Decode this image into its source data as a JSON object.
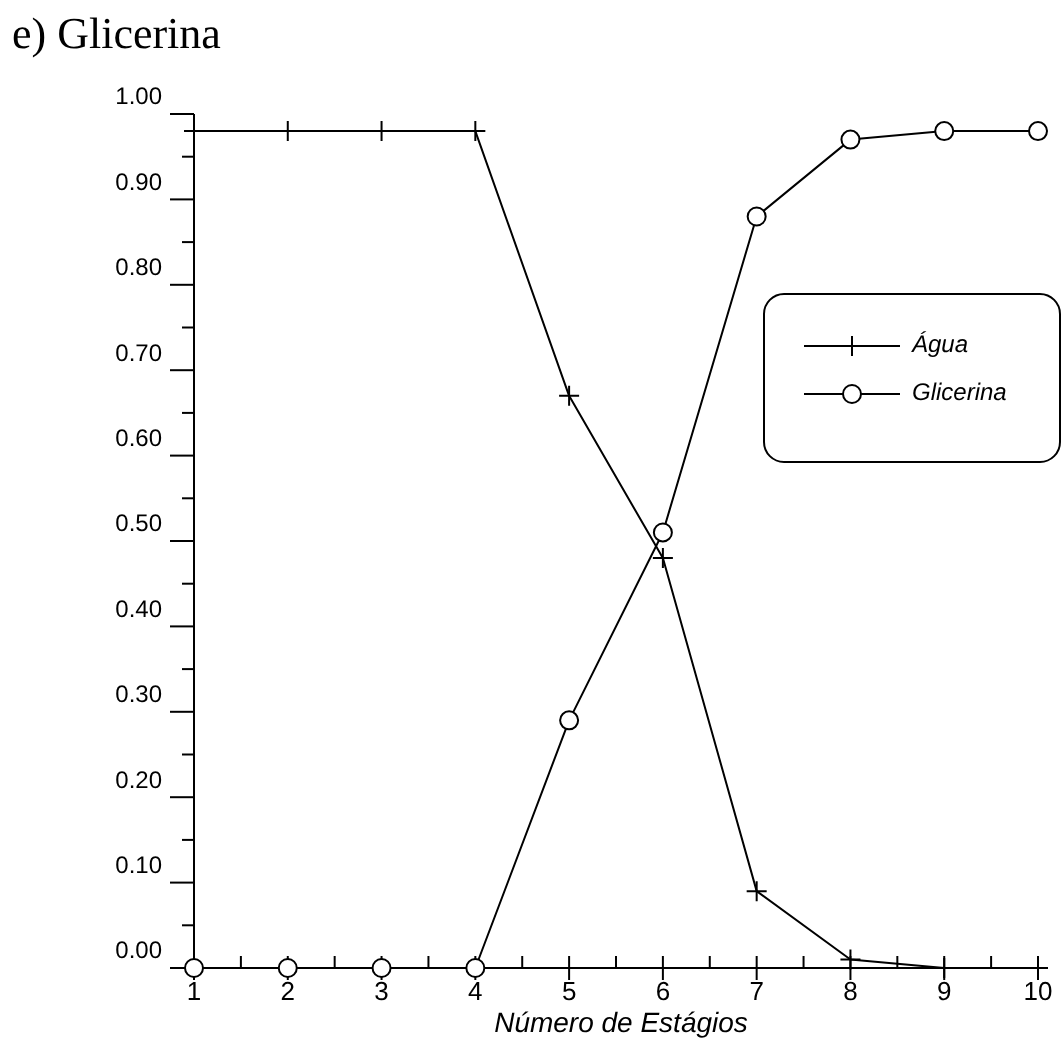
{
  "chart_data": {
    "type": "line",
    "title": "e) Glicerina",
    "xlabel": "Número de Estágios",
    "x": [
      1,
      2,
      3,
      4,
      5,
      6,
      7,
      8,
      9,
      10
    ],
    "series": [
      {
        "name": "Água",
        "color": "#000000",
        "marker": "cross",
        "values": [
          0.98,
          0.98,
          0.98,
          0.98,
          0.67,
          0.48,
          0.09,
          0.01,
          0.0,
          0.0
        ]
      },
      {
        "name": "Glicerina",
        "color": "#000000",
        "marker": "circle",
        "values": [
          0.0,
          0.0,
          0.0,
          0.0,
          0.29,
          0.51,
          0.88,
          0.97,
          0.98,
          0.98
        ]
      }
    ],
    "xlim": [
      1,
      10
    ],
    "xticks": [
      1,
      2,
      3,
      4,
      5,
      6,
      7,
      8,
      9,
      10
    ],
    "ylim": [
      0,
      1
    ],
    "yticks": [
      {
        "value": 0,
        "label": "0.00"
      },
      {
        "value": 0.1,
        "label": "0.10"
      },
      {
        "value": 0.2,
        "label": "0.20"
      },
      {
        "value": 0.3,
        "label": "0.30"
      },
      {
        "value": 0.4,
        "label": "0.40"
      },
      {
        "value": 0.5,
        "label": "0.50"
      },
      {
        "value": 0.6,
        "label": "0.60"
      },
      {
        "value": 0.7,
        "label": "0.70"
      },
      {
        "value": 0.8,
        "label": "0.80"
      },
      {
        "value": 0.9,
        "label": "0.90"
      },
      {
        "value": 1,
        "label": "1.00"
      }
    ],
    "grid": false,
    "legend": "top right",
    "line_style": "solid"
  }
}
